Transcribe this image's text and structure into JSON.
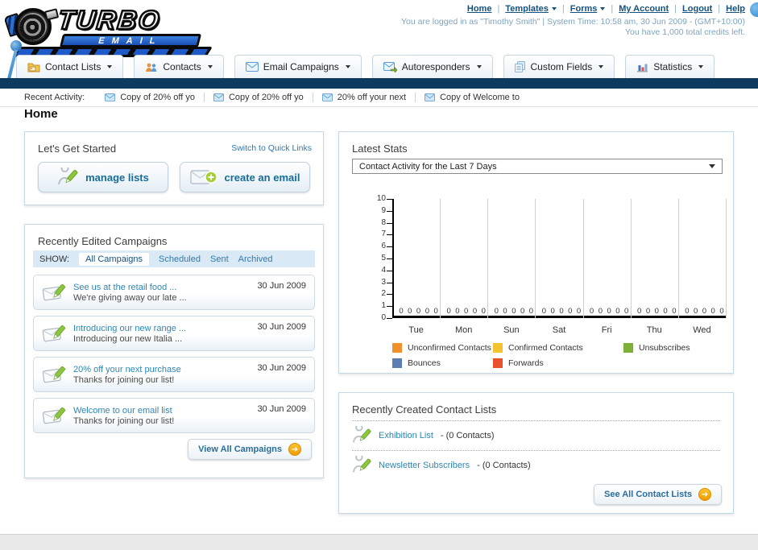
{
  "header": {
    "logo_title": "TURBO",
    "logo_subtitle": "EMAIL",
    "nav_links": [
      {
        "label": "Home",
        "has_dropdown": false
      },
      {
        "label": "Templates",
        "has_dropdown": true
      },
      {
        "label": "Forms",
        "has_dropdown": true
      },
      {
        "label": "My Account",
        "has_dropdown": false
      },
      {
        "label": "Logout",
        "has_dropdown": false
      },
      {
        "label": "Help",
        "has_dropdown": false
      }
    ],
    "login_line1": "You are logged in as \"Timothy Smith\" | System Time: 10:58 am, 30 Jun 2009 - (GMT+10:00)",
    "login_line2": "You have 1,000 total credits left."
  },
  "tabs": [
    {
      "label": "Contact Lists",
      "icon": "contact-lists-folder-icon"
    },
    {
      "label": "Contacts",
      "icon": "contacts-people-icon"
    },
    {
      "label": "Email Campaigns",
      "icon": "envelope-icon"
    },
    {
      "label": "Autoresponders",
      "icon": "envelope-arrow-icon"
    },
    {
      "label": "Custom Fields",
      "icon": "pages-icon"
    },
    {
      "label": "Statistics",
      "icon": "bar-chart-icon"
    }
  ],
  "recent_activity": {
    "label": "Recent Activity:",
    "items": [
      {
        "text": "Copy of 20% off yo"
      },
      {
        "text": "Copy of 20% off yo"
      },
      {
        "text": "20% off your next"
      },
      {
        "text": "Copy of Welcome to"
      }
    ]
  },
  "page_title": "Home",
  "get_started": {
    "title": "Let's Get Started",
    "switch_link": "Switch to Quick Links",
    "manage_lists_label": "manage lists",
    "create_email_label": "create an email"
  },
  "campaigns": {
    "title": "Recently Edited Campaigns",
    "show_label": "SHOW:",
    "filters": [
      "All Campaigns",
      "Scheduled",
      "Sent",
      "Archived"
    ],
    "active_filter": "All Campaigns",
    "items": [
      {
        "title": "See us at the retail food ...",
        "subtitle": "We're giving away our late ...",
        "date": "30 Jun 2009"
      },
      {
        "title": "Introducing our new range ...",
        "subtitle": "Introducing our new Italia ...",
        "date": "30 Jun 2009"
      },
      {
        "title": "20% off your next purchase",
        "subtitle": "Thanks for joining our list!",
        "date": "30 Jun 2009"
      },
      {
        "title": "Welcome to our email list",
        "subtitle": "Thanks for joining our list!",
        "date": "30 Jun 2009"
      }
    ],
    "view_all_label": "View All Campaigns"
  },
  "stats": {
    "title": "Latest Stats",
    "dropdown_value": "Contact Activity for the Last 7 Days"
  },
  "chart_data": {
    "type": "bar",
    "title": "Contact Activity for the Last 7 Days",
    "categories": [
      "Tue",
      "Mon",
      "Sun",
      "Sat",
      "Fri",
      "Thu",
      "Wed"
    ],
    "series": [
      {
        "name": "Unconfirmed Contacts",
        "color": "#F28E2B",
        "values": [
          0,
          0,
          0,
          0,
          0,
          0,
          0
        ]
      },
      {
        "name": "Confirmed Contacts",
        "color": "#F6C330",
        "values": [
          0,
          0,
          0,
          0,
          0,
          0,
          0
        ]
      },
      {
        "name": "Unsubscribes",
        "color": "#7DAE37",
        "values": [
          0,
          0,
          0,
          0,
          0,
          0,
          0
        ]
      },
      {
        "name": "Bounces",
        "color": "#5B7DB1",
        "values": [
          0,
          0,
          0,
          0,
          0,
          0,
          0
        ]
      },
      {
        "name": "Forwards",
        "color": "#E8502E",
        "values": [
          0,
          0,
          0,
          0,
          0,
          0,
          0
        ]
      }
    ],
    "xlabel": "",
    "ylabel": "",
    "ylim": [
      0,
      10
    ],
    "yticks": [
      0,
      1,
      2,
      3,
      4,
      5,
      6,
      7,
      8,
      9,
      10
    ],
    "grid": "vertical-only",
    "legend_position": "bottom"
  },
  "contact_lists": {
    "title": "Recently Created Contact Lists",
    "items": [
      {
        "name": "Exhibition List",
        "suffix": " - (0 Contacts)"
      },
      {
        "name": "Newsletter Subscribers",
        "suffix": " - (0 Contacts)"
      }
    ],
    "see_all_label": "See All Contact Lists"
  }
}
